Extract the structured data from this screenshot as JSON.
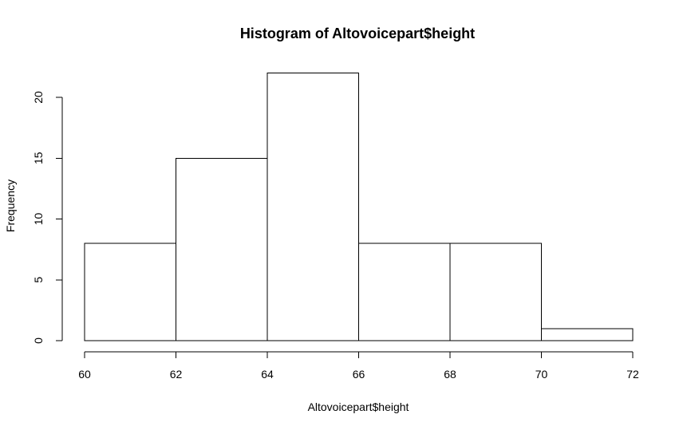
{
  "chart_data": {
    "type": "bar",
    "title": "Histogram of Altovoicepart$height",
    "xlabel": "Altovoicepart$height",
    "ylabel": "Frequency",
    "bins": [
      {
        "start": 60,
        "end": 62,
        "count": 8
      },
      {
        "start": 62,
        "end": 64,
        "count": 15
      },
      {
        "start": 64,
        "end": 66,
        "count": 22
      },
      {
        "start": 66,
        "end": 68,
        "count": 8
      },
      {
        "start": 68,
        "end": 70,
        "count": 8
      },
      {
        "start": 70,
        "end": 72,
        "count": 1
      }
    ],
    "xlim": [
      60,
      72
    ],
    "ylim": [
      0,
      22
    ],
    "x_ticks": [
      60,
      62,
      64,
      66,
      68,
      70,
      72
    ],
    "y_ticks": [
      0,
      5,
      10,
      15,
      20
    ],
    "grid": false,
    "legend": "none",
    "colors": {
      "bar_fill": "#ffffff",
      "bar_stroke": "#000000",
      "text": "#000000"
    }
  }
}
